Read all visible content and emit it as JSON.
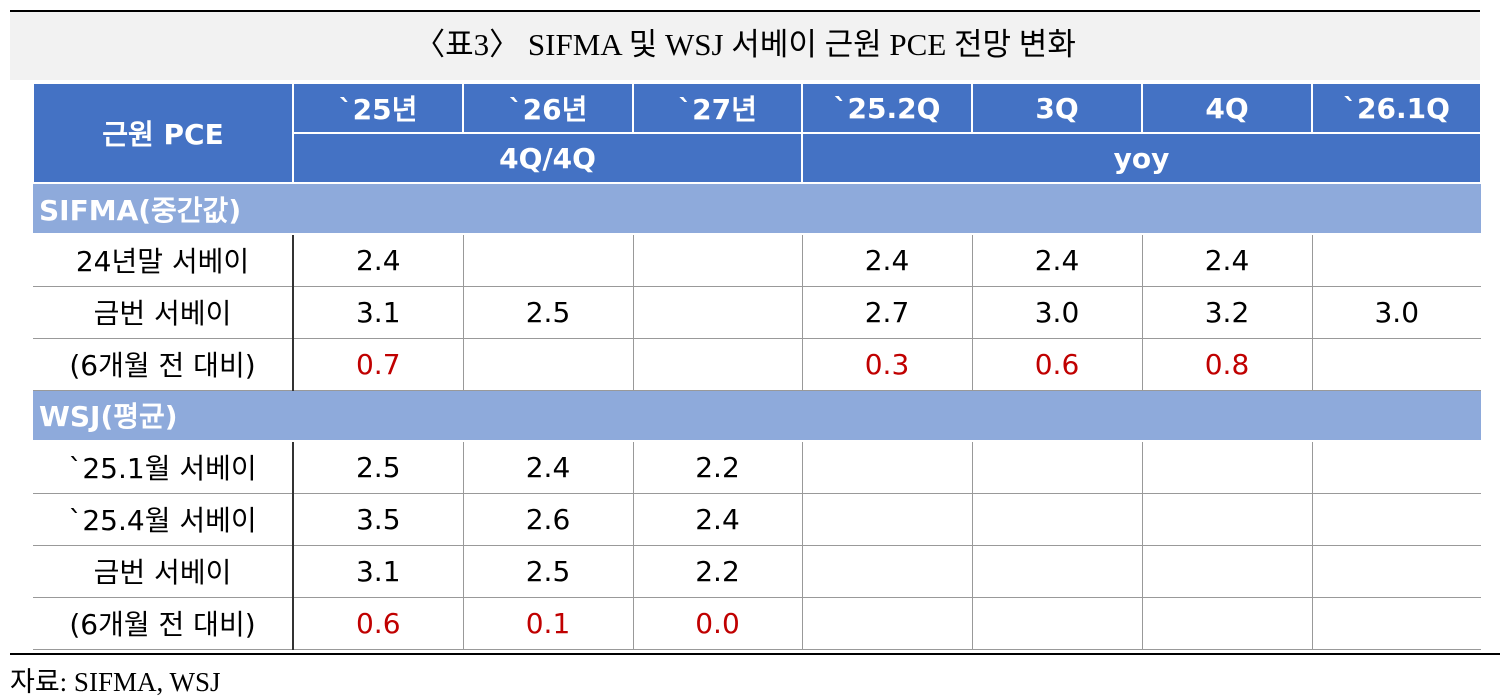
{
  "title": "〈표3〉 SIFMA 및 WSJ 서베이 근원 PCE 전망 변화",
  "header": {
    "corner": "근원 PCE",
    "columns": [
      "`25년",
      "`26년",
      "`27년",
      "`25.2Q",
      "3Q",
      "4Q",
      "`26.1Q"
    ],
    "groups": [
      "4Q/4Q",
      "yoy"
    ]
  },
  "sections": [
    {
      "name": "SIFMA(중간값)",
      "rows": [
        {
          "label": "24년말 서베이",
          "values": [
            "2.4",
            null,
            null,
            "2.4",
            "2.4",
            "2.4",
            null
          ]
        },
        {
          "label": "금번 서베이",
          "values": [
            "3.1",
            "2.5",
            null,
            "2.7",
            "3.0",
            "3.2",
            "3.0"
          ]
        },
        {
          "label": "(6개월 전 대비)",
          "values": [
            "0.7",
            null,
            null,
            "0.3",
            "0.6",
            "0.8",
            null
          ],
          "color": "#c00000"
        }
      ]
    },
    {
      "name": "WSJ(평균)",
      "rows": [
        {
          "label": "`25.1월 서베이",
          "values": [
            "2.5",
            "2.4",
            "2.2",
            null,
            null,
            null,
            null
          ]
        },
        {
          "label": "`25.4월 서베이",
          "values": [
            "3.5",
            "2.6",
            "2.4",
            null,
            null,
            null,
            null
          ]
        },
        {
          "label": "금번 서베이",
          "values": [
            "3.1",
            "2.5",
            "2.2",
            null,
            null,
            null,
            null
          ]
        },
        {
          "label": "(6개월 전 대비)",
          "values": [
            "0.6",
            "0.1",
            "0.0",
            null,
            null,
            null,
            null
          ],
          "color": "#c00000"
        }
      ]
    }
  ],
  "source": "자료: SIFMA, WSJ"
}
